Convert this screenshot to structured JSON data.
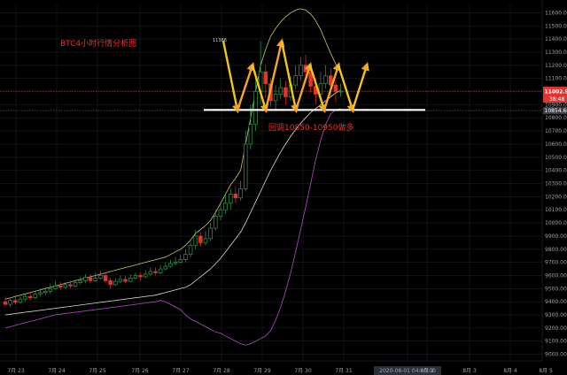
{
  "chart_data": {
    "type": "candlestick",
    "title": "BTC4小时行情分析图",
    "annotation": "回调10850-10950做多",
    "high_label": "11386",
    "price_labels": {
      "last": "11002.96",
      "countdown": "38:48",
      "support": "10854.68"
    },
    "x_labels": [
      "7月 23",
      "7月 24",
      "7月 25",
      "7月 26",
      "7月 27",
      "7月 28",
      "7月 29",
      "7月 30",
      "7月 31",
      "2020-08-01 04:00:00",
      "8月 2",
      "8月 3",
      "8月 4",
      "8月 5"
    ],
    "y_ticks": [
      11600,
      11500,
      11400,
      11300,
      11200,
      11100,
      11000,
      10900,
      10800,
      10700,
      10600,
      10500,
      10400,
      10300,
      10200,
      10100,
      10000,
      9900,
      9800,
      9700,
      9600,
      9500,
      9400,
      9300,
      9200,
      9100,
      9000
    ],
    "ylim": [
      8950,
      11670
    ],
    "candles": [
      [
        9400,
        9380,
        9440,
        9370
      ],
      [
        9380,
        9410,
        9430,
        9360
      ],
      [
        9410,
        9395,
        9450,
        9380
      ],
      [
        9395,
        9420,
        9440,
        9385
      ],
      [
        9420,
        9440,
        9460,
        9400
      ],
      [
        9440,
        9430,
        9470,
        9410
      ],
      [
        9430,
        9460,
        9480,
        9420
      ],
      [
        9460,
        9470,
        9500,
        9440
      ],
      [
        9470,
        9480,
        9510,
        9450
      ],
      [
        9480,
        9500,
        9540,
        9460
      ],
      [
        9500,
        9520,
        9560,
        9490
      ],
      [
        9520,
        9510,
        9550,
        9490
      ],
      [
        9510,
        9530,
        9550,
        9500
      ],
      [
        9530,
        9520,
        9560,
        9500
      ],
      [
        9520,
        9545,
        9570,
        9510
      ],
      [
        9545,
        9560,
        9590,
        9530
      ],
      [
        9560,
        9585,
        9610,
        9540
      ],
      [
        9585,
        9560,
        9610,
        9540
      ],
      [
        9560,
        9580,
        9620,
        9550
      ],
      [
        9580,
        9600,
        9640,
        9570
      ],
      [
        9600,
        9560,
        9620,
        9540
      ],
      [
        9560,
        9530,
        9580,
        9500
      ],
      [
        9530,
        9555,
        9580,
        9520
      ],
      [
        9555,
        9570,
        9600,
        9540
      ],
      [
        9570,
        9555,
        9600,
        9540
      ],
      [
        9555,
        9580,
        9610,
        9550
      ],
      [
        9580,
        9600,
        9620,
        9570
      ],
      [
        9600,
        9590,
        9620,
        9560
      ],
      [
        9590,
        9610,
        9640,
        9580
      ],
      [
        9610,
        9630,
        9660,
        9600
      ],
      [
        9630,
        9620,
        9660,
        9600
      ],
      [
        9620,
        9650,
        9680,
        9610
      ],
      [
        9650,
        9670,
        9700,
        9640
      ],
      [
        9670,
        9690,
        9720,
        9660
      ],
      [
        9690,
        9700,
        9740,
        9680
      ],
      [
        9700,
        9720,
        9760,
        9690
      ],
      [
        9720,
        9760,
        9800,
        9700
      ],
      [
        9760,
        9830,
        9860,
        9740
      ],
      [
        9830,
        9900,
        9950,
        9800
      ],
      [
        9900,
        9850,
        9930,
        9820
      ],
      [
        9850,
        9880,
        9940,
        9830
      ],
      [
        9880,
        9960,
        10000,
        9860
      ],
      [
        9960,
        10050,
        10100,
        9940
      ],
      [
        10050,
        10100,
        10160,
        10020
      ],
      [
        10100,
        10150,
        10220,
        10070
      ],
      [
        10150,
        10220,
        10260,
        10100
      ],
      [
        10220,
        10190,
        10280,
        10150
      ],
      [
        10190,
        10260,
        10320,
        10170
      ],
      [
        10260,
        10600,
        10700,
        10240
      ],
      [
        10600,
        10750,
        10900,
        10560
      ],
      [
        10750,
        11000,
        11150,
        10700
      ],
      [
        11000,
        11150,
        11386,
        10900
      ],
      [
        11150,
        11060,
        11200,
        10950
      ],
      [
        11060,
        10930,
        11100,
        10880
      ],
      [
        10930,
        10980,
        11050,
        10850
      ],
      [
        10980,
        11030,
        11100,
        10940
      ],
      [
        11030,
        10960,
        11080,
        10900
      ],
      [
        10960,
        11050,
        11120,
        10930
      ],
      [
        11050,
        11120,
        11200,
        11020
      ],
      [
        11120,
        11200,
        11260,
        11080
      ],
      [
        11200,
        11150,
        11280,
        11100
      ],
      [
        11150,
        11040,
        11200,
        10990
      ],
      [
        11040,
        10980,
        11100,
        10900
      ],
      [
        10980,
        11060,
        11150,
        10960
      ],
      [
        11060,
        11120,
        11200,
        11020
      ],
      [
        11120,
        11050,
        11180,
        10960
      ],
      [
        11050,
        11000,
        11080,
        10920
      ],
      [
        11000,
        11003,
        11060,
        10960
      ]
    ],
    "upper_band": [
      9420,
      9430,
      9440,
      9450,
      9460,
      9470,
      9480,
      9490,
      9500,
      9510,
      9520,
      9530,
      9540,
      9550,
      9560,
      9570,
      9580,
      9590,
      9600,
      9610,
      9620,
      9630,
      9640,
      9650,
      9660,
      9670,
      9680,
      9690,
      9700,
      9710,
      9720,
      9730,
      9740,
      9760,
      9780,
      9800,
      9830,
      9870,
      9920,
      9950,
      9980,
      10020,
      10080,
      10150,
      10220,
      10290,
      10340,
      10400,
      10600,
      10800,
      11000,
      11200,
      11320,
      11420,
      11480,
      11530,
      11570,
      11600,
      11620,
      11630,
      11620,
      11590,
      11540,
      11470,
      11380,
      11290,
      11210,
      11150
    ],
    "mid_band": [
      9300,
      9305,
      9310,
      9315,
      9320,
      9325,
      9330,
      9335,
      9340,
      9345,
      9350,
      9355,
      9360,
      9365,
      9370,
      9375,
      9380,
      9385,
      9390,
      9395,
      9400,
      9405,
      9410,
      9415,
      9420,
      9425,
      9430,
      9435,
      9440,
      9445,
      9450,
      9460,
      9470,
      9480,
      9490,
      9500,
      9510,
      9530,
      9560,
      9590,
      9620,
      9650,
      9690,
      9730,
      9780,
      9830,
      9880,
      9930,
      10000,
      10080,
      10160,
      10240,
      10320,
      10400,
      10470,
      10540,
      10600,
      10660,
      10710,
      10760,
      10800,
      10840,
      10870,
      10900,
      10930,
      10960,
      10990,
      11010
    ],
    "lower_band": [
      9200,
      9210,
      9220,
      9230,
      9240,
      9250,
      9260,
      9270,
      9280,
      9290,
      9300,
      9305,
      9310,
      9315,
      9320,
      9325,
      9330,
      9335,
      9340,
      9345,
      9350,
      9355,
      9360,
      9365,
      9370,
      9375,
      9380,
      9385,
      9390,
      9395,
      9400,
      9410,
      9400,
      9380,
      9360,
      9340,
      9300,
      9270,
      9250,
      9230,
      9210,
      9190,
      9170,
      9160,
      9140,
      9120,
      9100,
      9080,
      9070,
      9080,
      9100,
      9120,
      9140,
      9180,
      9260,
      9360,
      9480,
      9620,
      9780,
      9950,
      10120,
      10300,
      10480,
      10630,
      10750,
      10830,
      10860,
      10870
    ],
    "support_level": 10854.68,
    "zigzag_points": [
      [
        252,
        11386
      ],
      [
        268,
        10858
      ],
      [
        285,
        11200
      ],
      [
        300,
        10860
      ],
      [
        318,
        11380
      ],
      [
        334,
        10860
      ],
      [
        350,
        11200
      ],
      [
        366,
        10860
      ],
      [
        382,
        11200
      ]
    ],
    "future_points": [
      [
        382,
        11200
      ],
      [
        398,
        10860
      ],
      [
        414,
        11200
      ]
    ]
  }
}
